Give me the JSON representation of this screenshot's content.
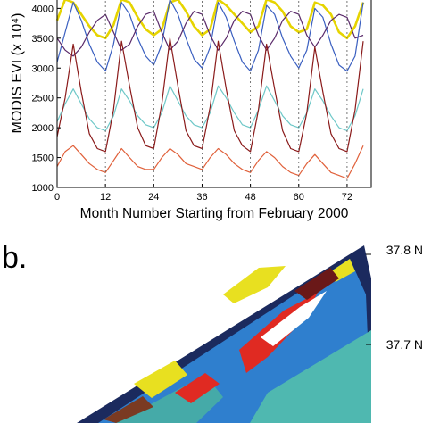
{
  "panel_b": {
    "label": "b."
  },
  "map": {
    "lat_labels": [
      "37.8 N",
      "37.7 N"
    ]
  },
  "chart_data": {
    "type": "line",
    "xlabel": "Month Number Starting from February 2000",
    "ylabel": "MODIS EVI (x 10⁴)",
    "xlim": [
      0,
      78
    ],
    "ylim": [
      1000,
      4200
    ],
    "xticks": [
      0,
      12,
      24,
      36,
      48,
      60,
      72
    ],
    "yticks": [
      1000,
      1500,
      2000,
      2500,
      3000,
      3500,
      4000
    ],
    "grid": false,
    "reference_lines_x": [
      12,
      24,
      36,
      48,
      60,
      72
    ],
    "series": [
      {
        "color": "#e6d400",
        "width": 2.6,
        "x": [
          0,
          2,
          4,
          6,
          8,
          10,
          12,
          14,
          16,
          18,
          20,
          22,
          24,
          26,
          28,
          30,
          32,
          34,
          36,
          38,
          40,
          42,
          44,
          46,
          48,
          50,
          52,
          54,
          56,
          58,
          60,
          62,
          64,
          66,
          68,
          70,
          72,
          74,
          76
        ],
        "values": [
          3800,
          4150,
          4100,
          3900,
          3700,
          3550,
          3500,
          3720,
          4150,
          4100,
          3850,
          3650,
          3550,
          3650,
          4100,
          4150,
          3950,
          3700,
          3550,
          3650,
          4150,
          4050,
          3900,
          3750,
          3600,
          3700,
          4150,
          4100,
          3950,
          3700,
          3600,
          3650,
          4100,
          4050,
          3900,
          3600,
          3500,
          3700,
          4100
        ]
      },
      {
        "color": "#3a5fc0",
        "width": 1.2,
        "x": [
          0,
          2,
          4,
          6,
          8,
          10,
          12,
          14,
          16,
          18,
          20,
          22,
          24,
          26,
          28,
          30,
          32,
          34,
          36,
          38,
          40,
          42,
          44,
          46,
          48,
          50,
          52,
          54,
          56,
          58,
          60,
          62,
          64,
          66,
          68,
          70,
          72,
          74,
          76
        ],
        "values": [
          3100,
          3600,
          4100,
          3800,
          3400,
          3100,
          2950,
          3400,
          4100,
          3900,
          3500,
          3200,
          3050,
          3400,
          4150,
          3900,
          3500,
          3150,
          3000,
          3350,
          4100,
          3850,
          3450,
          3100,
          2950,
          3300,
          4050,
          3900,
          3500,
          3200,
          3000,
          3300,
          4000,
          3850,
          3400,
          3050,
          2950,
          3200,
          4100
        ]
      },
      {
        "color": "#5a2a6a",
        "width": 1.2,
        "x": [
          0,
          2,
          4,
          6,
          8,
          10,
          12,
          14,
          16,
          18,
          20,
          22,
          24,
          26,
          28,
          30,
          32,
          34,
          36,
          38,
          40,
          42,
          44,
          46,
          48,
          50,
          52,
          54,
          56,
          58,
          60,
          62,
          64,
          66,
          68,
          70,
          72,
          74,
          76
        ],
        "values": [
          3500,
          3300,
          3200,
          3350,
          3600,
          3800,
          3900,
          3600,
          3300,
          3400,
          3700,
          3900,
          3950,
          3600,
          3300,
          3450,
          3750,
          3950,
          3900,
          3550,
          3300,
          3500,
          3800,
          3950,
          3900,
          3550,
          3300,
          3500,
          3800,
          3950,
          3900,
          3550,
          3350,
          3550,
          3800,
          3900,
          3850,
          3500,
          3550
        ]
      },
      {
        "color": "#6ec8c8",
        "width": 1.2,
        "x": [
          0,
          2,
          4,
          6,
          8,
          10,
          12,
          14,
          16,
          18,
          20,
          22,
          24,
          26,
          28,
          30,
          32,
          34,
          36,
          38,
          40,
          42,
          44,
          46,
          48,
          50,
          52,
          54,
          56,
          58,
          60,
          62,
          64,
          66,
          68,
          70,
          72,
          74,
          76
        ],
        "values": [
          2100,
          2400,
          2650,
          2400,
          2150,
          2000,
          1950,
          2200,
          2650,
          2450,
          2200,
          2050,
          2000,
          2250,
          2700,
          2450,
          2200,
          2050,
          2000,
          2250,
          2700,
          2500,
          2250,
          2050,
          2000,
          2300,
          2700,
          2450,
          2200,
          2050,
          2000,
          2250,
          2650,
          2450,
          2200,
          2000,
          1950,
          2200,
          2650
        ]
      },
      {
        "color": "#8a1a1a",
        "width": 1.2,
        "x": [
          0,
          2,
          4,
          6,
          8,
          10,
          12,
          14,
          16,
          18,
          20,
          22,
          24,
          26,
          28,
          30,
          32,
          34,
          36,
          38,
          40,
          42,
          44,
          46,
          48,
          50,
          52,
          54,
          56,
          58,
          60,
          62,
          64,
          66,
          68,
          70,
          72,
          74,
          76
        ],
        "values": [
          1850,
          2500,
          3400,
          2600,
          1900,
          1650,
          1600,
          2300,
          3450,
          2700,
          2000,
          1700,
          1650,
          2400,
          3500,
          2700,
          1950,
          1700,
          1650,
          2350,
          3450,
          2650,
          1950,
          1700,
          1600,
          2300,
          3400,
          2650,
          1950,
          1650,
          1600,
          2250,
          3350,
          2600,
          1900,
          1650,
          1600,
          2300,
          3450
        ]
      },
      {
        "color": "#e0603a",
        "width": 1.2,
        "x": [
          0,
          2,
          4,
          6,
          8,
          10,
          12,
          14,
          16,
          18,
          20,
          22,
          24,
          26,
          28,
          30,
          32,
          34,
          36,
          38,
          40,
          42,
          44,
          46,
          48,
          50,
          52,
          54,
          56,
          58,
          60,
          62,
          64,
          66,
          68,
          70,
          72,
          74,
          76
        ],
        "values": [
          1350,
          1600,
          1700,
          1550,
          1400,
          1300,
          1250,
          1450,
          1650,
          1500,
          1350,
          1300,
          1300,
          1500,
          1650,
          1550,
          1400,
          1350,
          1300,
          1500,
          1650,
          1550,
          1400,
          1300,
          1250,
          1450,
          1600,
          1500,
          1350,
          1250,
          1200,
          1400,
          1550,
          1400,
          1250,
          1200,
          1150,
          1400,
          1700
        ]
      }
    ]
  }
}
